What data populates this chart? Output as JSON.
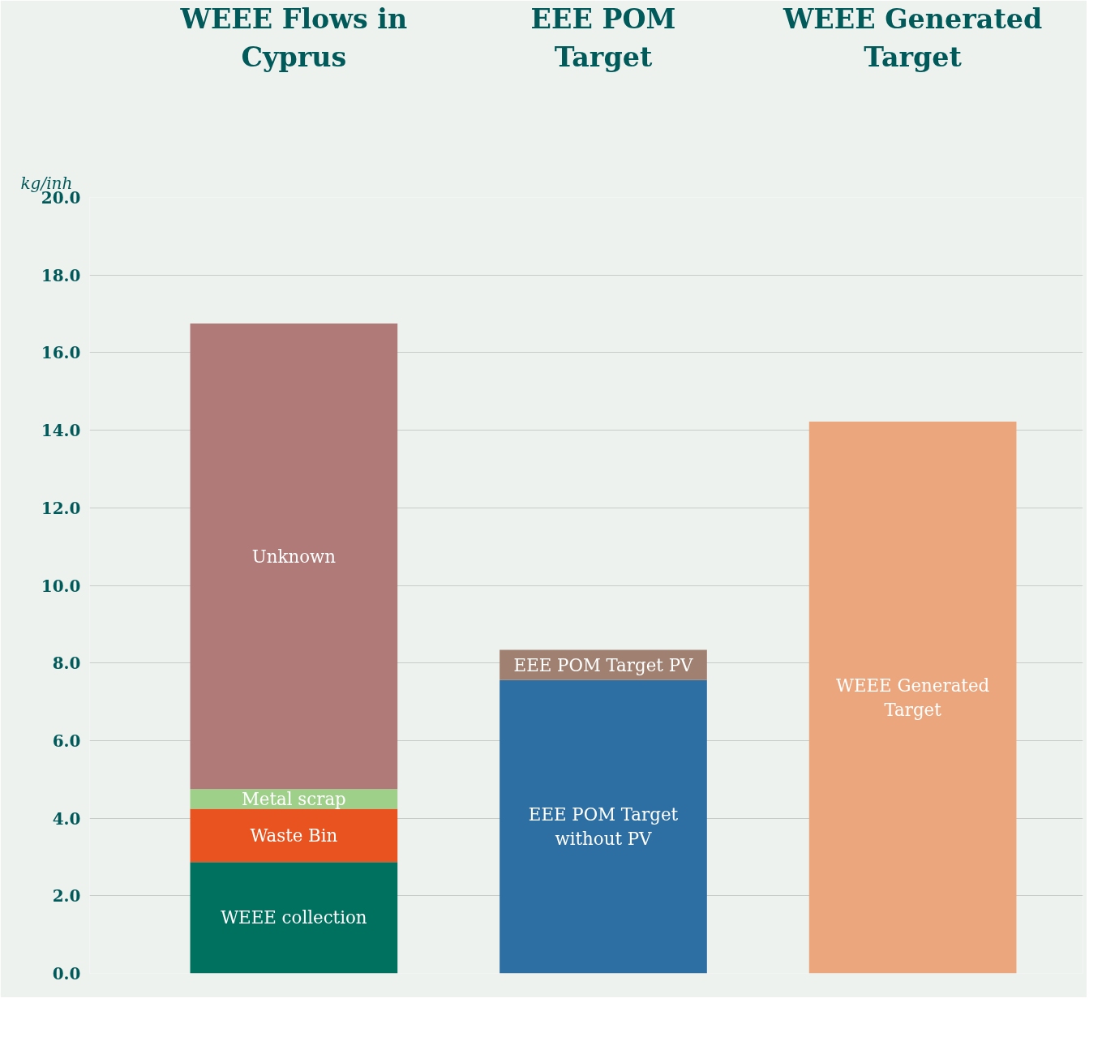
{
  "chart_data": {
    "type": "bar",
    "stacked": true,
    "categories": [
      "WEEE Flows in\nCyprus",
      "EEE POM\nTarget",
      "WEEE Generated\nTarget"
    ],
    "ylabel": "kg/inh",
    "ylim": [
      0,
      20
    ],
    "yticks": [
      {
        "value": 0,
        "label": "0.0"
      },
      {
        "value": 2,
        "label": "2.0"
      },
      {
        "value": 4,
        "label": "4.0"
      },
      {
        "value": 6,
        "label": "6.0"
      },
      {
        "value": 8,
        "label": "8.0"
      },
      {
        "value": 10,
        "label": "10.0"
      },
      {
        "value": 12,
        "label": "12.0"
      },
      {
        "value": 14,
        "label": "14.0"
      },
      {
        "value": 16,
        "label": "16.0"
      },
      {
        "value": 18,
        "label": "18.0"
      },
      {
        "value": 20,
        "label": "20.0"
      }
    ],
    "grid": "y",
    "series": [
      {
        "name": "WEEE collection",
        "color": "#00715f",
        "values": [
          2.87,
          null,
          null
        ]
      },
      {
        "name": "Waste Bin",
        "color": "#e8531f",
        "values": [
          1.37,
          null,
          null
        ]
      },
      {
        "name": "Metal scrap",
        "color": "#9fd08a",
        "values": [
          0.51,
          null,
          null
        ]
      },
      {
        "name": "Unknown",
        "color": "#b07a78",
        "values": [
          12.0,
          null,
          null
        ]
      },
      {
        "name": "EEE POM Target\nwithout PV",
        "color": "#2e6fa3",
        "values": [
          null,
          7.56,
          null
        ]
      },
      {
        "name": "EEE POM Target PV",
        "color": "#a08070",
        "values": [
          null,
          0.78,
          null
        ]
      },
      {
        "name": "WEEE Generated\nTarget",
        "color": "#eba67e",
        "values": [
          null,
          null,
          14.22
        ]
      }
    ]
  }
}
